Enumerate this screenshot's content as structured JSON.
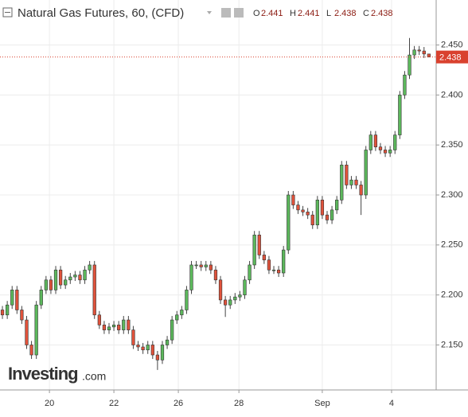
{
  "chart_data": {
    "type": "candlestick",
    "title": "Natural Gas Futures, 60, (CFD)",
    "ohlc_labels": [
      "O",
      "H",
      "L",
      "C"
    ],
    "watermark": [
      "Investing",
      ".com"
    ],
    "up_color": "#5cb85c",
    "down_color": "#e0523b",
    "last_price_color": "#d9412e",
    "grid": true,
    "ylim": [
      2.105,
      2.495
    ],
    "yticks": [
      {
        "value": 2.15,
        "label": "2.150"
      },
      {
        "value": 2.2,
        "label": "2.200"
      },
      {
        "value": 2.25,
        "label": "2.250"
      },
      {
        "value": 2.3,
        "label": "2.300"
      },
      {
        "value": 2.35,
        "label": "2.350"
      },
      {
        "value": 2.4,
        "label": "2.400"
      },
      {
        "value": 2.45,
        "label": "2.450"
      }
    ],
    "xlim": [
      0,
      90
    ],
    "xticks": [
      {
        "value": 10.2,
        "label": "20"
      },
      {
        "value": 23.5,
        "label": "22"
      },
      {
        "value": 36.8,
        "label": "26"
      },
      {
        "value": 49.3,
        "label": "28"
      },
      {
        "value": 66.5,
        "label": "Sep"
      },
      {
        "value": 80.8,
        "label": "4"
      }
    ],
    "open": [
      2.185,
      2.18,
      2.19,
      2.205,
      2.185,
      2.175,
      2.15,
      2.14,
      2.19,
      2.205,
      2.215,
      2.205,
      2.225,
      2.21,
      2.215,
      2.218,
      2.22,
      2.215,
      2.225,
      2.23,
      2.18,
      2.17,
      2.165,
      2.168,
      2.17,
      2.165,
      2.175,
      2.165,
      2.15,
      2.148,
      2.145,
      2.15,
      2.14,
      2.135,
      2.15,
      2.155,
      2.175,
      2.18,
      2.185,
      2.205,
      2.23,
      2.23,
      2.228,
      2.23,
      2.225,
      2.215,
      2.195,
      2.19,
      2.195,
      2.198,
      2.2,
      2.215,
      2.23,
      2.26,
      2.24,
      2.235,
      2.225,
      2.225,
      2.222,
      2.245,
      2.3,
      2.29,
      2.285,
      2.283,
      2.28,
      2.27,
      2.295,
      2.28,
      2.275,
      2.285,
      2.295,
      2.33,
      2.31,
      2.315,
      2.31,
      2.3,
      2.345,
      2.36,
      2.348,
      2.345,
      2.342,
      2.345,
      2.36,
      2.4,
      2.42,
      2.44,
      2.445,
      2.444,
      2.441
    ],
    "high": [
      2.189,
      2.194,
      2.209,
      2.209,
      2.189,
      2.179,
      2.154,
      2.194,
      2.209,
      2.219,
      2.219,
      2.229,
      2.229,
      2.219,
      2.222,
      2.224,
      2.224,
      2.229,
      2.234,
      2.234,
      2.184,
      2.174,
      2.172,
      2.174,
      2.174,
      2.179,
      2.179,
      2.169,
      2.154,
      2.152,
      2.154,
      2.154,
      2.144,
      2.154,
      2.159,
      2.179,
      2.184,
      2.189,
      2.209,
      2.234,
      2.234,
      2.234,
      2.234,
      2.234,
      2.229,
      2.219,
      2.199,
      2.199,
      2.202,
      2.204,
      2.219,
      2.234,
      2.264,
      2.264,
      2.244,
      2.239,
      2.229,
      2.229,
      2.249,
      2.304,
      2.304,
      2.294,
      2.289,
      2.287,
      2.284,
      2.299,
      2.299,
      2.284,
      2.289,
      2.299,
      2.334,
      2.334,
      2.319,
      2.319,
      2.314,
      2.349,
      2.364,
      2.364,
      2.352,
      2.349,
      2.349,
      2.364,
      2.404,
      2.424,
      2.457,
      2.449,
      2.449,
      2.448,
      2.441
    ],
    "low": [
      2.176,
      2.176,
      2.186,
      2.181,
      2.171,
      2.146,
      2.136,
      2.136,
      2.186,
      2.201,
      2.201,
      2.201,
      2.206,
      2.206,
      2.211,
      2.214,
      2.211,
      2.211,
      2.221,
      2.176,
      2.166,
      2.161,
      2.161,
      2.164,
      2.161,
      2.161,
      2.161,
      2.146,
      2.144,
      2.141,
      2.141,
      2.136,
      2.125,
      2.131,
      2.146,
      2.151,
      2.171,
      2.176,
      2.181,
      2.201,
      2.226,
      2.224,
      2.224,
      2.221,
      2.211,
      2.191,
      2.178,
      2.186,
      2.191,
      2.194,
      2.196,
      2.211,
      2.226,
      2.236,
      2.231,
      2.221,
      2.221,
      2.218,
      2.218,
      2.241,
      2.286,
      2.281,
      2.279,
      2.276,
      2.266,
      2.266,
      2.276,
      2.271,
      2.271,
      2.281,
      2.291,
      2.306,
      2.306,
      2.306,
      2.28,
      2.296,
      2.341,
      2.344,
      2.341,
      2.338,
      2.338,
      2.341,
      2.356,
      2.396,
      2.416,
      2.436,
      2.44,
      2.437,
      2.438
    ],
    "close": [
      2.18,
      2.19,
      2.205,
      2.185,
      2.175,
      2.15,
      2.14,
      2.19,
      2.205,
      2.215,
      2.205,
      2.225,
      2.21,
      2.215,
      2.218,
      2.22,
      2.215,
      2.225,
      2.23,
      2.18,
      2.17,
      2.165,
      2.168,
      2.17,
      2.165,
      2.175,
      2.165,
      2.15,
      2.148,
      2.145,
      2.15,
      2.14,
      2.135,
      2.15,
      2.155,
      2.175,
      2.18,
      2.185,
      2.205,
      2.23,
      2.23,
      2.228,
      2.23,
      2.225,
      2.215,
      2.195,
      2.19,
      2.195,
      2.198,
      2.2,
      2.215,
      2.23,
      2.26,
      2.24,
      2.235,
      2.225,
      2.225,
      2.222,
      2.245,
      2.3,
      2.29,
      2.285,
      2.283,
      2.28,
      2.27,
      2.295,
      2.28,
      2.275,
      2.285,
      2.295,
      2.33,
      2.31,
      2.315,
      2.31,
      2.3,
      2.345,
      2.36,
      2.348,
      2.345,
      2.342,
      2.345,
      2.36,
      2.4,
      2.42,
      2.44,
      2.445,
      2.444,
      2.441,
      2.438
    ]
  }
}
